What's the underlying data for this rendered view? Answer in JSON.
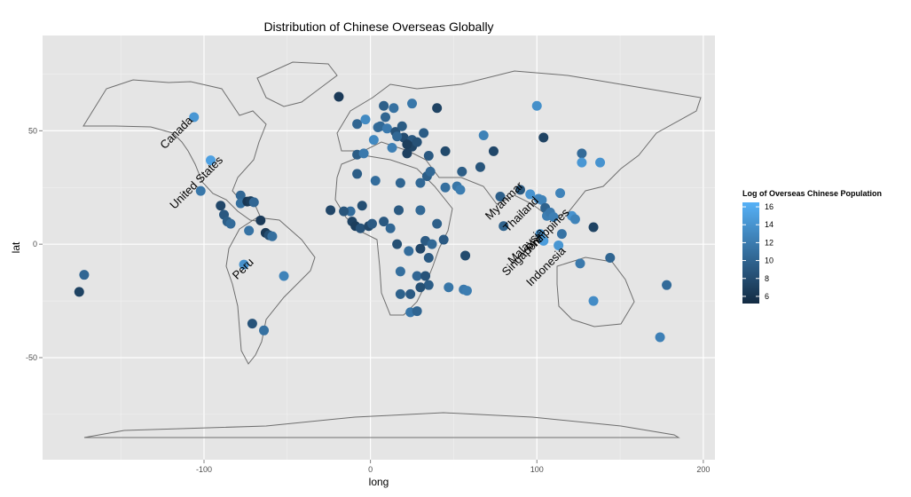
{
  "chart_data": {
    "type": "scatter",
    "title": "Distribution of Chinese Overseas Globally",
    "xlabel": "long",
    "ylabel": "lat",
    "xlim": [
      -197,
      207
    ],
    "ylim": [
      -95,
      92
    ],
    "xticks": [
      -100,
      0,
      100,
      200
    ],
    "yticks": [
      -50,
      0,
      50
    ],
    "grid": true,
    "background": "#e5e5e5",
    "legend": {
      "title": "Log of Overseas Chinese Population",
      "position": "right",
      "ticks": [
        6,
        8,
        10,
        12,
        14,
        16
      ],
      "range": [
        5.2,
        16.5
      ],
      "color_low": "#132b43",
      "color_high": "#56b1f7"
    },
    "labels": [
      {
        "text": "Canada",
        "x": -115,
        "y": 48,
        "angle": -45
      },
      {
        "text": "United States",
        "x": -103,
        "y": 26,
        "angle": -45
      },
      {
        "text": "Peru",
        "x": -75,
        "y": -12,
        "angle": -45
      },
      {
        "text": "Myanmar",
        "x": 82,
        "y": 18,
        "angle": -45
      },
      {
        "text": "Thailand",
        "x": 92,
        "y": 12,
        "angle": -45
      },
      {
        "text": "Malaysia",
        "x": 95,
        "y": -2,
        "angle": -45
      },
      {
        "text": "Singapore",
        "x": 93,
        "y": -6,
        "angle": -45
      },
      {
        "text": "Philippines",
        "x": 108,
        "y": 5,
        "angle": -45
      },
      {
        "text": "Indonesia",
        "x": 107,
        "y": -11,
        "angle": -45
      }
    ],
    "points": [
      {
        "x": -106,
        "y": 56,
        "v": 14.3
      },
      {
        "x": -96,
        "y": 37,
        "v": 15.1
      },
      {
        "x": -102,
        "y": 23.5,
        "v": 11.6
      },
      {
        "x": -90,
        "y": 17,
        "v": 7.6
      },
      {
        "x": -88,
        "y": 13,
        "v": 9.0
      },
      {
        "x": -86,
        "y": 10,
        "v": 9.5
      },
      {
        "x": -84,
        "y": 9,
        "v": 10.6
      },
      {
        "x": -78,
        "y": 21.5,
        "v": 10.3
      },
      {
        "x": -78,
        "y": 18,
        "v": 11.0
      },
      {
        "x": -74,
        "y": 18.8,
        "v": 6.2
      },
      {
        "x": -72,
        "y": 19,
        "v": 6.8
      },
      {
        "x": -70,
        "y": 18.5,
        "v": 10.2
      },
      {
        "x": -66,
        "y": 10.5,
        "v": 6.5
      },
      {
        "x": -73,
        "y": 6,
        "v": 11.3
      },
      {
        "x": -63,
        "y": 5,
        "v": 6.4
      },
      {
        "x": -61,
        "y": 4,
        "v": 8.2
      },
      {
        "x": -59,
        "y": 3.5,
        "v": 10.9
      },
      {
        "x": -76,
        "y": -9,
        "v": 13.8
      },
      {
        "x": -52,
        "y": -14,
        "v": 12.6
      },
      {
        "x": -71,
        "y": -35,
        "v": 8.6
      },
      {
        "x": -64,
        "y": -38,
        "v": 11.1
      },
      {
        "x": -172,
        "y": -13.5,
        "v": 10.2
      },
      {
        "x": -175,
        "y": -21,
        "v": 7.2
      },
      {
        "x": -19,
        "y": 65,
        "v": 6.5
      },
      {
        "x": -8,
        "y": 53,
        "v": 10.1
      },
      {
        "x": -3,
        "y": 55,
        "v": 13.2
      },
      {
        "x": -8,
        "y": 39.5,
        "v": 9.3
      },
      {
        "x": -4,
        "y": 40,
        "v": 11.8
      },
      {
        "x": 2,
        "y": 46,
        "v": 13.1
      },
      {
        "x": 4.5,
        "y": 51.5,
        "v": 10.6
      },
      {
        "x": 6,
        "y": 52,
        "v": 10.4
      },
      {
        "x": 9,
        "y": 56,
        "v": 10.1
      },
      {
        "x": 8,
        "y": 61,
        "v": 9.6
      },
      {
        "x": 14,
        "y": 60,
        "v": 11.1
      },
      {
        "x": 25,
        "y": 62,
        "v": 11.6
      },
      {
        "x": 10,
        "y": 51,
        "v": 11.9
      },
      {
        "x": 15,
        "y": 49.5,
        "v": 8.6
      },
      {
        "x": 19,
        "y": 52,
        "v": 9.3
      },
      {
        "x": 20,
        "y": 47,
        "v": 8.0
      },
      {
        "x": 25,
        "y": 46,
        "v": 9.0
      },
      {
        "x": 25,
        "y": 43,
        "v": 7.4
      },
      {
        "x": 22,
        "y": 40,
        "v": 7.0
      },
      {
        "x": 13,
        "y": 42.5,
        "v": 12.3
      },
      {
        "x": 16,
        "y": 47.5,
        "v": 10.3
      },
      {
        "x": 22,
        "y": 44,
        "v": 6.8
      },
      {
        "x": 28,
        "y": 45,
        "v": 8.4
      },
      {
        "x": 32,
        "y": 49,
        "v": 9.4
      },
      {
        "x": 35,
        "y": 39,
        "v": 9.1
      },
      {
        "x": 45,
        "y": 41,
        "v": 7.8
      },
      {
        "x": 40,
        "y": 60,
        "v": 7.2
      },
      {
        "x": 100,
        "y": 61,
        "v": 13.7
      },
      {
        "x": 68,
        "y": 48,
        "v": 12.5
      },
      {
        "x": 55,
        "y": 32,
        "v": 9.4
      },
      {
        "x": 66,
        "y": 34,
        "v": 8.7
      },
      {
        "x": 74,
        "y": 41,
        "v": 7.6
      },
      {
        "x": 52,
        "y": 25.5,
        "v": 11.4
      },
      {
        "x": 54,
        "y": 24,
        "v": 12.1
      },
      {
        "x": 45,
        "y": 25,
        "v": 10.9
      },
      {
        "x": 34,
        "y": 30,
        "v": 9.5
      },
      {
        "x": 30,
        "y": 27,
        "v": 10.4
      },
      {
        "x": 18,
        "y": 27,
        "v": 10.1
      },
      {
        "x": 3,
        "y": 28,
        "v": 10.8
      },
      {
        "x": -8,
        "y": 31,
        "v": 9.4
      },
      {
        "x": -5,
        "y": 17,
        "v": 8.2
      },
      {
        "x": -12,
        "y": 14.5,
        "v": 10.8
      },
      {
        "x": -16,
        "y": 14.5,
        "v": 8.7
      },
      {
        "x": -24,
        "y": 15,
        "v": 7.5
      },
      {
        "x": -11,
        "y": 10,
        "v": 7.2
      },
      {
        "x": -9,
        "y": 8,
        "v": 6.8
      },
      {
        "x": -6,
        "y": 7,
        "v": 8.5
      },
      {
        "x": -1,
        "y": 8,
        "v": 7.6
      },
      {
        "x": 1,
        "y": 9,
        "v": 9.2
      },
      {
        "x": 8,
        "y": 10,
        "v": 9.0
      },
      {
        "x": 12,
        "y": 7,
        "v": 10.3
      },
      {
        "x": 17,
        "y": 15,
        "v": 9.1
      },
      {
        "x": 30,
        "y": 15,
        "v": 10.4
      },
      {
        "x": 40,
        "y": 9,
        "v": 9.6
      },
      {
        "x": 44,
        "y": 2,
        "v": 9.2
      },
      {
        "x": 16,
        "y": 0,
        "v": 8.3
      },
      {
        "x": 23,
        "y": -3,
        "v": 10.8
      },
      {
        "x": 33,
        "y": 1.5,
        "v": 9.2
      },
      {
        "x": 37,
        "y": 0,
        "v": 10.4
      },
      {
        "x": 30,
        "y": -2,
        "v": 7.5
      },
      {
        "x": 35,
        "y": -6,
        "v": 9.1
      },
      {
        "x": 18,
        "y": -12,
        "v": 10.9
      },
      {
        "x": 28,
        "y": -14,
        "v": 10.2
      },
      {
        "x": 33,
        "y": -14,
        "v": 8.6
      },
      {
        "x": 35,
        "y": -18,
        "v": 9.4
      },
      {
        "x": 30,
        "y": -19,
        "v": 8.3
      },
      {
        "x": 24,
        "y": -22,
        "v": 9.2
      },
      {
        "x": 18,
        "y": -22,
        "v": 9.8
      },
      {
        "x": 24,
        "y": -30,
        "v": 11.6
      },
      {
        "x": 28,
        "y": -29.5,
        "v": 10.1
      },
      {
        "x": 47,
        "y": -19,
        "v": 11.5
      },
      {
        "x": 56,
        "y": -20,
        "v": 11.8
      },
      {
        "x": 58,
        "y": -20.5,
        "v": 12.1
      },
      {
        "x": 57,
        "y": -5,
        "v": 7.9
      },
      {
        "x": 36,
        "y": 32,
        "v": 10.4
      },
      {
        "x": 78,
        "y": 21,
        "v": 9.6
      },
      {
        "x": 80,
        "y": 8,
        "v": 9.8
      },
      {
        "x": 90,
        "y": 24,
        "v": 8.8
      },
      {
        "x": 96,
        "y": 22,
        "v": 14.0
      },
      {
        "x": 101,
        "y": 20,
        "v": 12.9
      },
      {
        "x": 103,
        "y": 19.5,
        "v": 12.6
      },
      {
        "x": 105,
        "y": 16,
        "v": 9.9
      },
      {
        "x": 106,
        "y": 12.5,
        "v": 12.1
      },
      {
        "x": 108,
        "y": 14,
        "v": 11.7
      },
      {
        "x": 110,
        "y": 12,
        "v": 12.3
      },
      {
        "x": 104,
        "y": 47,
        "v": 7.2
      },
      {
        "x": 114,
        "y": 22.5,
        "v": 12.6
      },
      {
        "x": 121,
        "y": 12.5,
        "v": 14.0
      },
      {
        "x": 123,
        "y": 11,
        "v": 12.6
      },
      {
        "x": 115,
        "y": 4.5,
        "v": 11.3
      },
      {
        "x": 102,
        "y": 4.5,
        "v": 14.5
      },
      {
        "x": 104,
        "y": 1.5,
        "v": 14.8
      },
      {
        "x": 113,
        "y": -0.5,
        "v": 14.2
      },
      {
        "x": 126,
        "y": -8.5,
        "v": 11.8
      },
      {
        "x": 127,
        "y": 40,
        "v": 10.6
      },
      {
        "x": 127,
        "y": 36,
        "v": 14.3
      },
      {
        "x": 138,
        "y": 36,
        "v": 14.0
      },
      {
        "x": 134,
        "y": 7.5,
        "v": 7.2
      },
      {
        "x": 144,
        "y": -6,
        "v": 10.1
      },
      {
        "x": 134,
        "y": -25,
        "v": 13.4
      },
      {
        "x": 178,
        "y": -18,
        "v": 10.6
      },
      {
        "x": 174,
        "y": -41,
        "v": 12.4
      }
    ]
  }
}
